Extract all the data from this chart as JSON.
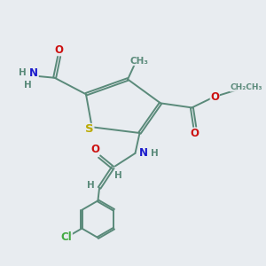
{
  "bg_color": "#e8ecf0",
  "bond_color": "#5a8a7a",
  "bond_width": 1.4,
  "atom_colors": {
    "S": "#bbaa00",
    "N": "#1a1acc",
    "O": "#cc1111",
    "C": "#5a8a7a",
    "Cl": "#44aa44",
    "H": "#5a8a7a"
  },
  "font_size": 8.5
}
